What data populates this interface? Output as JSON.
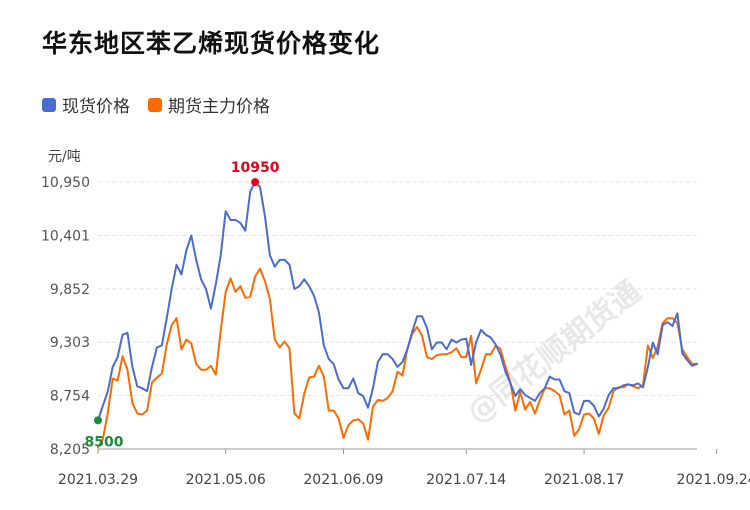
{
  "title": "华东地区苯乙烯现货价格变化",
  "legend": [
    {
      "label": "现货价格",
      "color": "#4a6ccf"
    },
    {
      "label": "期货主力价格",
      "color": "#ff6a00"
    }
  ],
  "unit": "元/吨",
  "watermark": "@同花顺期货通",
  "chart_data": {
    "type": "line",
    "title": "华东地区苯乙烯现货价格变化",
    "ylabel": "元/吨",
    "ylim": [
      8205,
      11095
    ],
    "y_ticks": [
      "8,205",
      "8,754",
      "9,303",
      "9,852",
      "10,401",
      "10,950"
    ],
    "y_tick_values": [
      8205,
      8754,
      9303,
      9852,
      10401,
      10950
    ],
    "x_ticks": [
      "2021.03.29",
      "2021.05.06",
      "2021.06.09",
      "2021.07.14",
      "2021.08.17",
      "2021.09.24"
    ],
    "x_tick_index": [
      0,
      26,
      50,
      75,
      99,
      126
    ],
    "grid": "horizontal",
    "legend_position": "top-left",
    "series": [
      {
        "name": "现货价格",
        "color": "#4a6ccf",
        "values": [
          8500,
          8650,
          8800,
          9050,
          9150,
          9380,
          9400,
          9050,
          8850,
          8830,
          8800,
          9050,
          9250,
          9270,
          9550,
          9850,
          10100,
          10000,
          10250,
          10400,
          10150,
          9950,
          9850,
          9650,
          9900,
          10200,
          10650,
          10560,
          10560,
          10530,
          10450,
          10850,
          10950,
          10900,
          10600,
          10200,
          10080,
          10150,
          10150,
          10100,
          9850,
          9880,
          9950,
          9880,
          9780,
          9610,
          9270,
          9130,
          9080,
          8920,
          8830,
          8830,
          8930,
          8780,
          8750,
          8630,
          8830,
          9100,
          9180,
          9180,
          9130,
          9050,
          9100,
          9230,
          9410,
          9570,
          9570,
          9450,
          9230,
          9300,
          9300,
          9230,
          9330,
          9300,
          9330,
          9340,
          9070,
          9300,
          9430,
          9380,
          9350,
          9280,
          9170,
          9000,
          8880,
          8750,
          8820,
          8760,
          8730,
          8700,
          8780,
          8830,
          8950,
          8920,
          8920,
          8800,
          8780,
          8580,
          8560,
          8700,
          8700,
          8650,
          8540,
          8620,
          8760,
          8830,
          8830,
          8860,
          8870,
          8860,
          8880,
          8840,
          9050,
          9300,
          9180,
          9480,
          9510,
          9470,
          9600,
          9190,
          9120,
          9060,
          9080
        ]
      },
      {
        "name": "期货主力价格",
        "color": "#ff6a00",
        "values": [
          8220,
          8310,
          8580,
          8930,
          8910,
          9160,
          9020,
          8680,
          8570,
          8560,
          8600,
          8890,
          8940,
          8980,
          9280,
          9480,
          9550,
          9230,
          9330,
          9290,
          9080,
          9020,
          9020,
          9060,
          8970,
          9430,
          9820,
          9960,
          9820,
          9880,
          9760,
          9770,
          9980,
          10060,
          9930,
          9750,
          9330,
          9250,
          9310,
          9240,
          8570,
          8520,
          8770,
          8940,
          8950,
          9060,
          8950,
          8600,
          8600,
          8520,
          8320,
          8450,
          8500,
          8510,
          8470,
          8300,
          8640,
          8710,
          8700,
          8730,
          8800,
          9000,
          8960,
          9230,
          9390,
          9460,
          9370,
          9150,
          9130,
          9170,
          9180,
          9180,
          9200,
          9240,
          9150,
          9150,
          9370,
          8880,
          9020,
          9180,
          9180,
          9270,
          9230,
          9050,
          8890,
          8600,
          8790,
          8610,
          8690,
          8570,
          8710,
          8830,
          8830,
          8800,
          8760,
          8560,
          8600,
          8340,
          8410,
          8560,
          8570,
          8520,
          8360,
          8550,
          8630,
          8800,
          8840,
          8840,
          8870,
          8850,
          8830,
          8860,
          9270,
          9140,
          9260,
          9500,
          9550,
          9550,
          9500,
          9230,
          9150,
          9080,
          9080
        ]
      }
    ],
    "annotations": [
      {
        "text": "10950",
        "series": "现货价格",
        "index": 32,
        "value": 10950,
        "color": "#e8001c"
      },
      {
        "text": "8500",
        "series": "现货价格",
        "index": 0,
        "value": 8500,
        "color": "#1a8c3a"
      }
    ]
  }
}
